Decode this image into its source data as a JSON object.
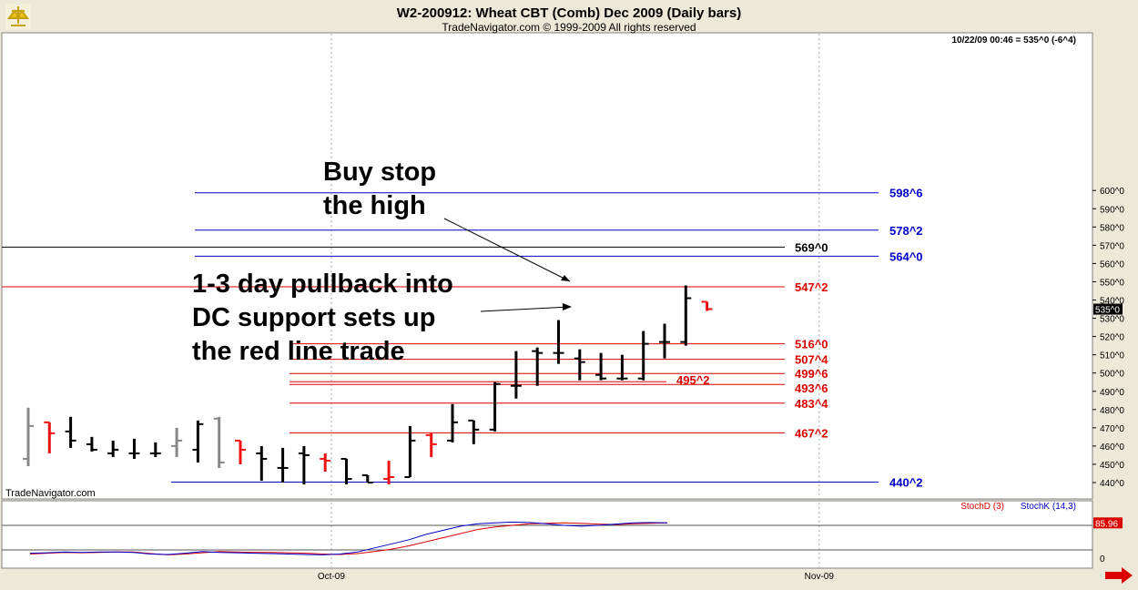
{
  "header": {
    "title": "W2-200912:  Wheat CBT (Comb) Dec 2009  (Daily bars)",
    "subtitle": "TradeNavigator.com © 1999-2009 All rights reserved",
    "datestamp": "10/22/09 00:46 = 535^0 (-6^4)"
  },
  "watermark": "TradeNavigator.com",
  "colors": {
    "up_bar": "#000000",
    "down_bar": "#ee1111",
    "gray_bar": "#888888",
    "blue_line": "#0000cc",
    "red_line": "#dd0000",
    "black_line": "#000000",
    "stochD": "#dd0000",
    "stochK": "#0000cc"
  },
  "chart_data": [
    {
      "type": "ohlc",
      "ylim": [
        430,
        605
      ],
      "yticks": [
        "440^0",
        "450^0",
        "460^0",
        "470^0",
        "480^0",
        "490^0",
        "500^0",
        "510^0",
        "520^0",
        "530^0",
        "540^0",
        "550^0",
        "560^0",
        "570^0",
        "580^0",
        "590^0",
        "600^0"
      ],
      "last_price": "535^0",
      "x_labels": [
        {
          "label": "Oct-09",
          "bar": 13
        },
        {
          "label": "Nov-09",
          "bar": 36
        }
      ],
      "bars": [
        {
          "o": 453,
          "h": 481,
          "l": 449,
          "c": 471,
          "color": "gray"
        },
        {
          "o": 473,
          "h": 473,
          "l": 456,
          "c": 467,
          "color": "red"
        },
        {
          "o": 468,
          "h": 476,
          "l": 459,
          "c": 463,
          "color": "black"
        },
        {
          "o": 461,
          "h": 465,
          "l": 457,
          "c": 458,
          "color": "black"
        },
        {
          "o": 456,
          "h": 463,
          "l": 454,
          "c": 458,
          "color": "black"
        },
        {
          "o": 456,
          "h": 464,
          "l": 453,
          "c": 456,
          "color": "black"
        },
        {
          "o": 456,
          "h": 462,
          "l": 454,
          "c": 456,
          "color": "black"
        },
        {
          "o": 460,
          "h": 470,
          "l": 454,
          "c": 463,
          "color": "gray"
        },
        {
          "o": 458,
          "h": 474,
          "l": 451,
          "c": 472,
          "color": "black"
        },
        {
          "o": 475,
          "h": 476,
          "l": 448,
          "c": 451,
          "color": "gray"
        },
        {
          "o": 463,
          "h": 463,
          "l": 450,
          "c": 458,
          "color": "red"
        },
        {
          "o": 456,
          "h": 460,
          "l": 441,
          "c": 453,
          "color": "black"
        },
        {
          "o": 448,
          "h": 459,
          "l": 440,
          "c": 448,
          "color": "black"
        },
        {
          "o": 456,
          "h": 460,
          "l": 439,
          "c": 455,
          "color": "black"
        },
        {
          "o": 453,
          "h": 456,
          "l": 446,
          "c": 452,
          "color": "red"
        },
        {
          "o": 453,
          "h": 453,
          "l": 439,
          "c": 442,
          "color": "black"
        },
        {
          "o": 444,
          "h": 444,
          "l": 440,
          "c": 440,
          "color": "black"
        },
        {
          "o": 442,
          "h": 452,
          "l": 439,
          "c": 443,
          "color": "red"
        },
        {
          "o": 443,
          "h": 471,
          "l": 443,
          "c": 463,
          "color": "black"
        },
        {
          "o": 466,
          "h": 467,
          "l": 454,
          "c": 461,
          "color": "red"
        },
        {
          "o": 463,
          "h": 483,
          "l": 462,
          "c": 473,
          "color": "black"
        },
        {
          "o": 474,
          "h": 474,
          "l": 461,
          "c": 469,
          "color": "black"
        },
        {
          "o": 469,
          "h": 495,
          "l": 468,
          "c": 494,
          "color": "black"
        },
        {
          "o": 493,
          "h": 512,
          "l": 486,
          "c": 493,
          "color": "black"
        },
        {
          "o": 512,
          "h": 514,
          "l": 493,
          "c": 511,
          "color": "black"
        },
        {
          "o": 511,
          "h": 529,
          "l": 505,
          "c": 511,
          "color": "black"
        },
        {
          "o": 508,
          "h": 513,
          "l": 496,
          "c": 506,
          "color": "black"
        },
        {
          "o": 499,
          "h": 511,
          "l": 496,
          "c": 497,
          "color": "black"
        },
        {
          "o": 497,
          "h": 510,
          "l": 496,
          "c": 497,
          "color": "black"
        },
        {
          "o": 497,
          "h": 523,
          "l": 496,
          "c": 516,
          "color": "black"
        },
        {
          "o": 517,
          "h": 527,
          "l": 508,
          "c": 517,
          "color": "black"
        },
        {
          "o": 517,
          "h": 548,
          "l": 515,
          "c": 541,
          "color": "black"
        },
        {
          "o": 539,
          "h": 539,
          "l": 534,
          "c": 535,
          "color": "red"
        }
      ],
      "levels": [
        {
          "value": 598.75,
          "label": "598^6",
          "color": "blue"
        },
        {
          "value": 578.25,
          "label": "578^2",
          "color": "blue"
        },
        {
          "value": 569.0,
          "label": "569^0",
          "color": "black"
        },
        {
          "value": 564.0,
          "label": "564^0",
          "color": "blue"
        },
        {
          "value": 547.25,
          "label": "547^2",
          "color": "red"
        },
        {
          "value": 516.0,
          "label": "516^0",
          "color": "red"
        },
        {
          "value": 507.5,
          "label": "507^4",
          "color": "red"
        },
        {
          "value": 499.75,
          "label": "499^6",
          "color": "red"
        },
        {
          "value": 495.25,
          "label": "495^2",
          "color": "red"
        },
        {
          "value": 493.75,
          "label": "493^6",
          "color": "red"
        },
        {
          "value": 483.5,
          "label": "483^4",
          "color": "red"
        },
        {
          "value": 467.25,
          "label": "467^2",
          "color": "red"
        },
        {
          "value": 440.25,
          "label": "440^2",
          "color": "blue"
        }
      ],
      "annotations": [
        {
          "lines": [
            "Buy stop",
            "the high"
          ]
        },
        {
          "lines": [
            "1-3 day pullback into",
            "DC support sets up",
            "the red line trade"
          ]
        }
      ]
    },
    {
      "type": "line",
      "ylim": [
        0,
        100
      ],
      "yticks": [
        "0"
      ],
      "last_value": "85.96",
      "legend": [
        "StochD (3)",
        "StochK (14,3)"
      ],
      "series": [
        {
          "name": "StochD (3)",
          "color": "stochD",
          "values": [
            10,
            12,
            14,
            13,
            14,
            15,
            15,
            11,
            8,
            10,
            13,
            16,
            15,
            14,
            14,
            13,
            12,
            10,
            9,
            11,
            16,
            22,
            30,
            40,
            50,
            60,
            70,
            76,
            80,
            84,
            85,
            86,
            85,
            83,
            82,
            84,
            85,
            86
          ]
        },
        {
          "name": "StochK (14,3)",
          "color": "stochK",
          "values": [
            12,
            13,
            15,
            14,
            15,
            15,
            14,
            10,
            9,
            12,
            16,
            14,
            13,
            12,
            11,
            10,
            9,
            8,
            10,
            15,
            25,
            35,
            45,
            58,
            68,
            78,
            84,
            86,
            88,
            87,
            84,
            80,
            78,
            80,
            83,
            86,
            87,
            86
          ]
        }
      ]
    }
  ]
}
